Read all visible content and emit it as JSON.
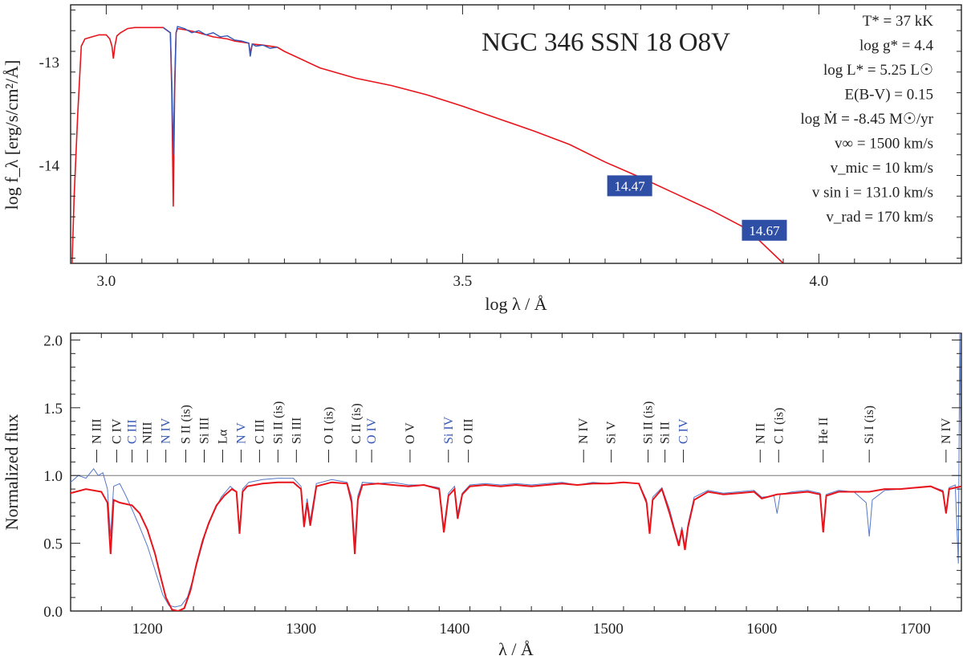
{
  "chart_data": [
    {
      "type": "line",
      "title": "NGC 346 SSN 18 O8V",
      "xlabel": "log λ / Å",
      "ylabel": "log f_λ [erg/s/cm²/Å]",
      "xlim": [
        2.95,
        4.2
      ],
      "ylim": [
        -14.95,
        -12.45
      ],
      "xticks": [
        "3.0",
        "3.5",
        "4.0"
      ],
      "yticks": [
        "-13",
        "-14"
      ],
      "grid": false,
      "parameters": [
        "T* = 37 kK",
        "log g* = 4.4",
        "log L* = 5.25 L☉",
        "E(B-V) = 0.15",
        "log Ṁ = -8.45 M☉/yr",
        "v∞ = 1500 km/s",
        "v_mic = 10 km/s",
        "v sin i = 131.0 km/s",
        "v_rad = 170 km/s"
      ],
      "photometry": [
        {
          "label": "14.47",
          "x": 3.703,
          "y": -14.2
        },
        {
          "label": "14.67",
          "x": 3.892,
          "y": -14.63
        }
      ],
      "series": [
        {
          "color": "#e8141b",
          "x": [
            2.952,
            2.955,
            2.96,
            2.965,
            2.97,
            2.98,
            2.99,
            3.0,
            3.005,
            3.008,
            3.01,
            3.012,
            3.015,
            3.02,
            3.03,
            3.04,
            3.06,
            3.08,
            3.09,
            3.092,
            3.094,
            3.096,
            3.098,
            3.1,
            3.11,
            3.13,
            3.15,
            3.17,
            3.18,
            3.2,
            3.202,
            3.205,
            3.22,
            3.24,
            3.25,
            3.3,
            3.35,
            3.4,
            3.45,
            3.5,
            3.55,
            3.6,
            3.65,
            3.7,
            3.75,
            3.8,
            3.85,
            3.9,
            3.95
          ],
          "y": [
            -14.95,
            -14.3,
            -13.5,
            -12.85,
            -12.78,
            -12.76,
            -12.74,
            -12.74,
            -12.78,
            -12.85,
            -12.97,
            -12.85,
            -12.75,
            -12.72,
            -12.68,
            -12.67,
            -12.67,
            -12.67,
            -12.72,
            -13.3,
            -14.4,
            -13.3,
            -12.72,
            -12.68,
            -12.69,
            -12.72,
            -12.76,
            -12.78,
            -12.8,
            -12.82,
            -12.92,
            -12.83,
            -12.84,
            -12.86,
            -12.9,
            -13.06,
            -13.16,
            -13.23,
            -13.32,
            -13.43,
            -13.55,
            -13.67,
            -13.8,
            -13.97,
            -14.12,
            -14.28,
            -14.44,
            -14.62,
            -14.95
          ]
        },
        {
          "color": "#3558b8",
          "x": [
            3.08,
            3.09,
            3.092,
            3.094,
            3.096,
            3.098,
            3.1,
            3.11,
            3.12,
            3.13,
            3.14,
            3.15,
            3.16,
            3.17,
            3.18,
            3.19,
            3.2,
            3.202,
            3.205,
            3.21,
            3.22,
            3.23,
            3.24
          ],
          "y": [
            -12.67,
            -12.72,
            -13.2,
            -13.9,
            -13.2,
            -12.72,
            -12.66,
            -12.68,
            -12.72,
            -12.7,
            -12.74,
            -12.72,
            -12.76,
            -12.75,
            -12.79,
            -12.8,
            -12.82,
            -12.95,
            -12.83,
            -12.85,
            -12.84,
            -12.87,
            -12.86
          ]
        }
      ]
    },
    {
      "type": "line",
      "xlabel": "λ / Å",
      "ylabel": "Normalized flux",
      "xlim": [
        1150,
        1730
      ],
      "ylim": [
        0.0,
        2.05
      ],
      "xticks": [
        "1200",
        "1300",
        "1400",
        "1500",
        "1600",
        "1700"
      ],
      "yticks": [
        "0.0",
        "0.5",
        "1.0",
        "1.5",
        "2.0"
      ],
      "continuum": 1.0,
      "grid": false,
      "line_ids": [
        {
          "label": "N III",
          "x": 1167,
          "color": "#222222"
        },
        {
          "label": "C IV",
          "x": 1180,
          "color": "#222222"
        },
        {
          "label": "C III",
          "x": 1190,
          "color": "#3558b8"
        },
        {
          "label": "NIII",
          "x": 1200,
          "color": "#222222"
        },
        {
          "label": "N IV",
          "x": 1212,
          "color": "#3558b8"
        },
        {
          "label": "S II (is)",
          "x": 1225,
          "color": "#222222"
        },
        {
          "label": "Si III",
          "x": 1237,
          "color": "#222222"
        },
        {
          "label": "Lα",
          "x": 1249,
          "color": "#222222"
        },
        {
          "label": "N V",
          "x": 1261,
          "color": "#3558b8"
        },
        {
          "label": "C III",
          "x": 1273,
          "color": "#222222"
        },
        {
          "label": "Si II (is)",
          "x": 1285,
          "color": "#222222"
        },
        {
          "label": "Si III",
          "x": 1297,
          "color": "#222222"
        },
        {
          "label": "O I (is)",
          "x": 1318,
          "color": "#222222"
        },
        {
          "label": "C II (is)",
          "x": 1336,
          "color": "#222222"
        },
        {
          "label": "O IV",
          "x": 1346,
          "color": "#3558b8"
        },
        {
          "label": "O V",
          "x": 1371,
          "color": "#222222"
        },
        {
          "label": "Si IV",
          "x": 1396,
          "color": "#3558b8"
        },
        {
          "label": "O III",
          "x": 1409,
          "color": "#222222"
        },
        {
          "label": "N IV",
          "x": 1484,
          "color": "#222222"
        },
        {
          "label": "Si V",
          "x": 1502,
          "color": "#222222"
        },
        {
          "label": "Si II (is)",
          "x": 1526,
          "color": "#222222"
        },
        {
          "label": "Si II",
          "x": 1537,
          "color": "#222222"
        },
        {
          "label": "C IV",
          "x": 1549,
          "color": "#3558b8"
        },
        {
          "label": "N II",
          "x": 1599,
          "color": "#222222"
        },
        {
          "label": "C I (is)",
          "x": 1611,
          "color": "#222222"
        },
        {
          "label": "He II",
          "x": 1640,
          "color": "#222222"
        },
        {
          "label": "Si I (is)",
          "x": 1670,
          "color": "#222222"
        },
        {
          "label": "N IV",
          "x": 1720,
          "color": "#222222"
        }
      ],
      "series": [
        {
          "color": "#e8141b",
          "x": [
            1150,
            1160,
            1170,
            1174,
            1176,
            1178,
            1182,
            1190,
            1195,
            1200,
            1205,
            1208,
            1212,
            1216,
            1220,
            1224,
            1228,
            1232,
            1236,
            1240,
            1245,
            1250,
            1255,
            1258,
            1260,
            1262,
            1265,
            1275,
            1285,
            1295,
            1300,
            1302,
            1304,
            1306,
            1310,
            1320,
            1330,
            1333,
            1335,
            1337,
            1340,
            1350,
            1360,
            1370,
            1380,
            1390,
            1393,
            1396,
            1400,
            1402,
            1405,
            1410,
            1420,
            1430,
            1440,
            1450,
            1460,
            1470,
            1480,
            1490,
            1500,
            1510,
            1520,
            1525,
            1527,
            1529,
            1535,
            1540,
            1543,
            1546,
            1548,
            1550,
            1552,
            1556,
            1565,
            1575,
            1585,
            1595,
            1600,
            1610,
            1620,
            1630,
            1638,
            1640,
            1642,
            1650,
            1660,
            1670,
            1680,
            1690,
            1700,
            1710,
            1718,
            1720,
            1722,
            1730
          ],
          "y": [
            0.87,
            0.9,
            0.88,
            0.8,
            0.42,
            0.82,
            0.8,
            0.78,
            0.72,
            0.6,
            0.42,
            0.28,
            0.1,
            0.01,
            0.0,
            0.02,
            0.15,
            0.35,
            0.52,
            0.65,
            0.78,
            0.85,
            0.9,
            0.88,
            0.57,
            0.88,
            0.92,
            0.94,
            0.95,
            0.95,
            0.9,
            0.62,
            0.8,
            0.63,
            0.92,
            0.95,
            0.94,
            0.8,
            0.42,
            0.82,
            0.93,
            0.94,
            0.93,
            0.92,
            0.93,
            0.9,
            0.58,
            0.85,
            0.9,
            0.68,
            0.86,
            0.92,
            0.93,
            0.92,
            0.93,
            0.92,
            0.93,
            0.94,
            0.93,
            0.94,
            0.94,
            0.95,
            0.94,
            0.8,
            0.57,
            0.82,
            0.9,
            0.72,
            0.6,
            0.48,
            0.6,
            0.45,
            0.62,
            0.82,
            0.88,
            0.86,
            0.87,
            0.88,
            0.83,
            0.86,
            0.87,
            0.88,
            0.86,
            0.58,
            0.85,
            0.88,
            0.88,
            0.88,
            0.9,
            0.9,
            0.91,
            0.92,
            0.88,
            0.72,
            0.9,
            0.92
          ]
        },
        {
          "color": "#5578c8",
          "x": [
            1150,
            1155,
            1160,
            1165,
            1168,
            1171,
            1174,
            1176,
            1178,
            1182,
            1186,
            1190,
            1195,
            1200,
            1205,
            1210,
            1214,
            1218,
            1222,
            1226,
            1230,
            1234,
            1238,
            1242,
            1248,
            1254,
            1258,
            1260,
            1262,
            1266,
            1275,
            1285,
            1295,
            1300,
            1302,
            1304,
            1306,
            1310,
            1320,
            1330,
            1333,
            1335,
            1337,
            1340,
            1350,
            1360,
            1370,
            1380,
            1390,
            1393,
            1396,
            1400,
            1402,
            1405,
            1410,
            1420,
            1430,
            1440,
            1450,
            1460,
            1470,
            1480,
            1490,
            1500,
            1510,
            1520,
            1525,
            1527,
            1529,
            1535,
            1540,
            1543,
            1546,
            1548,
            1550,
            1552,
            1556,
            1565,
            1575,
            1585,
            1595,
            1600,
            1608,
            1610,
            1612,
            1620,
            1630,
            1638,
            1640,
            1642,
            1650,
            1660,
            1668,
            1670,
            1672,
            1680,
            1690,
            1700,
            1710,
            1718,
            1720,
            1722,
            1726,
            1728,
            1729,
            1730
          ],
          "y": [
            0.95,
            1.0,
            0.98,
            1.05,
            1.0,
            1.02,
            0.9,
            0.55,
            0.92,
            0.94,
            0.85,
            0.75,
            0.62,
            0.48,
            0.3,
            0.12,
            0.04,
            0.03,
            0.04,
            0.1,
            0.25,
            0.42,
            0.58,
            0.7,
            0.84,
            0.92,
            0.88,
            0.6,
            0.9,
            0.95,
            0.97,
            0.98,
            0.98,
            0.92,
            0.66,
            0.83,
            0.67,
            0.94,
            0.97,
            0.95,
            0.84,
            0.5,
            0.85,
            0.95,
            0.94,
            0.95,
            0.93,
            0.93,
            0.91,
            0.62,
            0.87,
            0.92,
            0.72,
            0.87,
            0.93,
            0.94,
            0.93,
            0.94,
            0.93,
            0.94,
            0.95,
            0.93,
            0.95,
            0.94,
            0.95,
            0.94,
            0.82,
            0.6,
            0.84,
            0.91,
            0.75,
            0.62,
            0.5,
            0.62,
            0.48,
            0.64,
            0.84,
            0.89,
            0.87,
            0.88,
            0.89,
            0.84,
            0.85,
            0.72,
            0.86,
            0.88,
            0.89,
            0.87,
            0.6,
            0.86,
            0.89,
            0.88,
            0.8,
            0.55,
            0.82,
            0.89,
            0.9,
            0.91,
            0.92,
            0.89,
            0.74,
            0.91,
            0.93,
            0.35,
            2.1,
            0.8
          ]
        }
      ]
    }
  ]
}
